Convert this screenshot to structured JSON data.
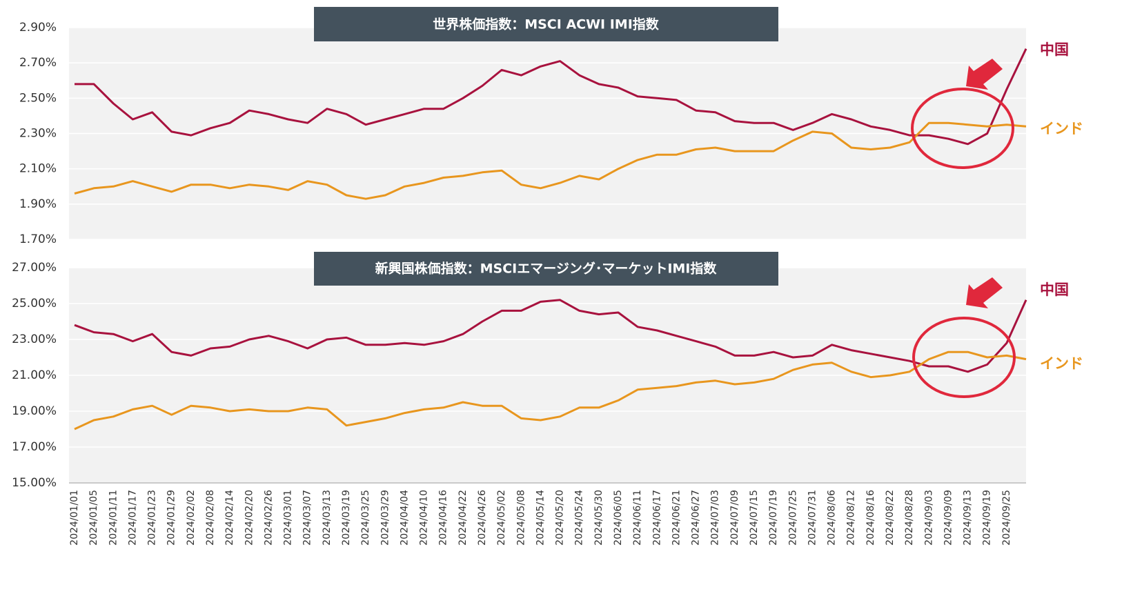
{
  "chart_data": [
    {
      "type": "line",
      "title": "世界株価指数：MSCI ACWI IMI指数",
      "ylim": [
        1.7,
        2.9
      ],
      "yticks": [
        {
          "value": 1.7,
          "label": "1.70%"
        },
        {
          "value": 1.9,
          "label": "1.90%"
        },
        {
          "value": 2.1,
          "label": "2.10%"
        },
        {
          "value": 2.3,
          "label": "2.30%"
        },
        {
          "value": 2.5,
          "label": "2.50%"
        },
        {
          "value": 2.7,
          "label": "2.70%"
        },
        {
          "value": 2.9,
          "label": "2.90%"
        }
      ],
      "grid": true,
      "series": [
        {
          "name": "中国",
          "color": "#a8123e",
          "values": [
            2.58,
            2.58,
            2.47,
            2.38,
            2.42,
            2.31,
            2.29,
            2.33,
            2.36,
            2.43,
            2.41,
            2.38,
            2.36,
            2.44,
            2.41,
            2.35,
            2.38,
            2.41,
            2.44,
            2.44,
            2.5,
            2.57,
            2.66,
            2.63,
            2.68,
            2.71,
            2.63,
            2.58,
            2.56,
            2.51,
            2.5,
            2.49,
            2.43,
            2.42,
            2.37,
            2.36,
            2.36,
            2.32,
            2.36,
            2.41,
            2.38,
            2.34,
            2.32,
            2.29,
            2.29,
            2.27,
            2.24,
            2.3,
            2.55,
            2.78
          ]
        },
        {
          "name": "インド",
          "color": "#e8961e",
          "values": [
            1.96,
            1.99,
            2.0,
            2.03,
            2.0,
            1.97,
            2.01,
            2.01,
            1.99,
            2.01,
            2.0,
            1.98,
            2.03,
            2.01,
            1.95,
            1.93,
            1.95,
            2.0,
            2.02,
            2.05,
            2.06,
            2.08,
            2.09,
            2.01,
            1.99,
            2.02,
            2.06,
            2.04,
            2.1,
            2.15,
            2.18,
            2.18,
            2.21,
            2.22,
            2.2,
            2.2,
            2.2,
            2.26,
            2.31,
            2.3,
            2.22,
            2.21,
            2.22,
            2.25,
            2.36,
            2.36,
            2.35,
            2.34,
            2.35,
            2.34
          ]
        }
      ]
    },
    {
      "type": "line",
      "title": "新興国株価指数：MSCIエマージング･マーケットIMI指数",
      "categories": [
        "2024/01/01",
        "2024/01/05",
        "2024/01/11",
        "2024/01/17",
        "2024/01/23",
        "2024/01/29",
        "2024/02/02",
        "2024/02/08",
        "2024/02/14",
        "2024/02/20",
        "2024/02/26",
        "2024/03/01",
        "2024/03/07",
        "2024/03/13",
        "2024/03/19",
        "2024/03/25",
        "2024/03/29",
        "2024/04/04",
        "2024/04/10",
        "2024/04/16",
        "2024/04/22",
        "2024/04/26",
        "2024/05/02",
        "2024/05/08",
        "2024/05/14",
        "2024/05/20",
        "2024/05/24",
        "2024/05/30",
        "2024/06/05",
        "2024/06/11",
        "2024/06/17",
        "2024/06/21",
        "2024/06/27",
        "2024/07/03",
        "2024/07/09",
        "2024/07/15",
        "2024/07/19",
        "2024/07/25",
        "2024/07/31",
        "2024/08/06",
        "2024/08/12",
        "2024/08/16",
        "2024/08/22",
        "2024/08/28",
        "2024/09/03",
        "2024/09/09",
        "2024/09/13",
        "2024/09/19",
        "2024/09/25",
        null
      ],
      "ylim": [
        15,
        27
      ],
      "yticks": [
        {
          "value": 15,
          "label": "15.00%"
        },
        {
          "value": 17,
          "label": "17.00%"
        },
        {
          "value": 19,
          "label": "19.00%"
        },
        {
          "value": 21,
          "label": "21.00%"
        },
        {
          "value": 23,
          "label": "23.00%"
        },
        {
          "value": 25,
          "label": "25.00%"
        },
        {
          "value": 27,
          "label": "27.00%"
        }
      ],
      "grid": true,
      "series": [
        {
          "name": "中国",
          "color": "#a8123e",
          "values": [
            23.8,
            23.4,
            23.3,
            22.9,
            23.3,
            22.3,
            22.1,
            22.5,
            22.6,
            23.0,
            23.2,
            22.9,
            22.5,
            23.0,
            23.1,
            22.7,
            22.7,
            22.8,
            22.7,
            22.9,
            23.3,
            24.0,
            24.6,
            24.6,
            25.1,
            25.2,
            24.6,
            24.4,
            24.5,
            23.7,
            23.5,
            23.2,
            22.9,
            22.6,
            22.1,
            22.1,
            22.3,
            22.0,
            22.1,
            22.7,
            22.4,
            22.2,
            22.0,
            21.8,
            21.5,
            21.5,
            21.2,
            21.6,
            22.8,
            25.2
          ]
        },
        {
          "name": "インド",
          "color": "#e8961e",
          "values": [
            18.0,
            18.5,
            18.7,
            19.1,
            19.3,
            18.8,
            19.3,
            19.2,
            19.0,
            19.1,
            19.0,
            19.0,
            19.2,
            19.1,
            18.2,
            18.4,
            18.6,
            18.9,
            19.1,
            19.2,
            19.5,
            19.3,
            19.3,
            18.6,
            18.5,
            18.7,
            19.2,
            19.2,
            19.6,
            20.2,
            20.3,
            20.4,
            20.6,
            20.7,
            20.5,
            20.6,
            20.8,
            21.3,
            21.6,
            21.7,
            21.2,
            20.9,
            21.0,
            21.2,
            21.9,
            22.3,
            22.3,
            22.0,
            22.1,
            21.9
          ]
        }
      ]
    }
  ]
}
